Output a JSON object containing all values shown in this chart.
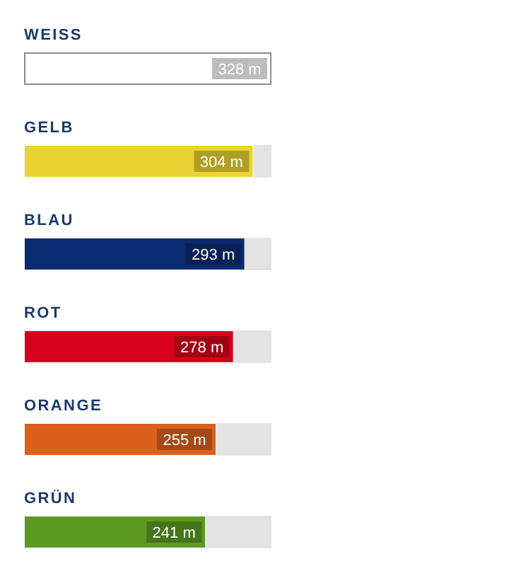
{
  "chart_data": {
    "type": "bar",
    "orientation": "horizontal",
    "categories": [
      "WEISS",
      "GELB",
      "BLAU",
      "ROT",
      "ORANGE",
      "GRÜN"
    ],
    "values": [
      328,
      304,
      293,
      278,
      255,
      241
    ],
    "colors": [
      "#ffffff",
      "#ead334",
      "#0b2a6f",
      "#d9001b",
      "#dc601c",
      "#5c9a23"
    ],
    "value_labels": [
      "328 m",
      "304 m",
      "293 m",
      "278 m",
      "255 m",
      "241 m"
    ]
  }
}
